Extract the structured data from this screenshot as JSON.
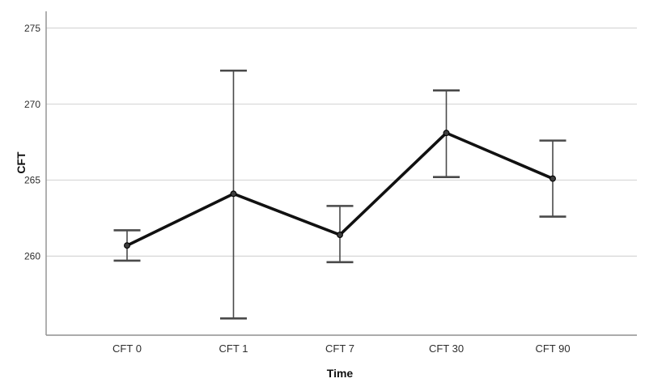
{
  "figure": {
    "background": "#ffffff"
  },
  "chart_data": {
    "type": "line",
    "title": "",
    "xlabel": "Time",
    "ylabel": "CFT",
    "categories": [
      "CFT 0",
      "CFT 1",
      "CFT 7",
      "CFT 30",
      "CFT 90"
    ],
    "series": [
      {
        "name": "CFT",
        "values": [
          260.7,
          264.1,
          261.4,
          268.1,
          265.1
        ],
        "error_low": [
          259.7,
          255.9,
          259.6,
          265.2,
          262.6
        ],
        "error_high": [
          261.7,
          272.2,
          263.3,
          270.9,
          267.6
        ]
      }
    ],
    "yticks": [
      260,
      265,
      270,
      275
    ],
    "ylim": [
      254.8,
      276.1
    ],
    "grid": true,
    "legend_position": "none",
    "marker": "circle",
    "colors": {
      "line": "#111111",
      "marker_fill": "#3d3d3d",
      "marker_stroke": "#000000",
      "error_bar": "#4a4a4a",
      "gridline": "#d7d7d7",
      "axis": "#8f8f8f",
      "tick_text": "#2e2e2e",
      "background": "#ffffff"
    }
  }
}
